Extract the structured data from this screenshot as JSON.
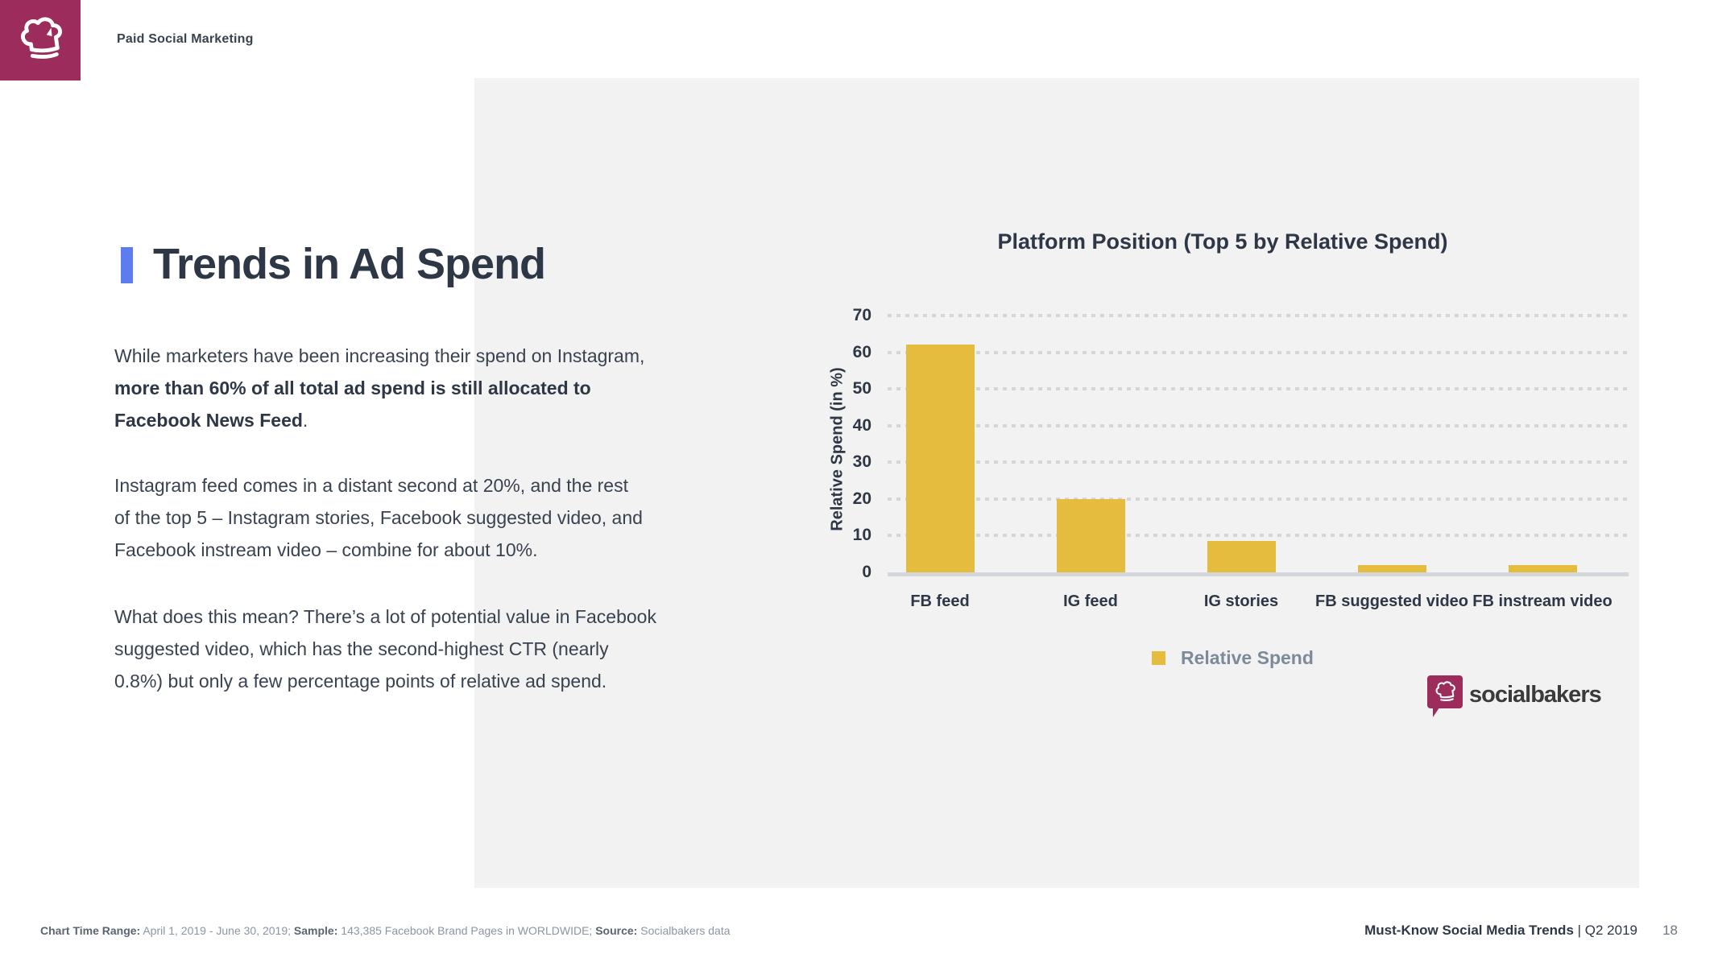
{
  "header": {
    "badge_label": "Paid Social Marketing"
  },
  "article": {
    "title": "Trends in Ad Spend",
    "p1_normal": "While marketers have been increasing their spend on Instagram,\n",
    "p1_bold": "more than 60% of all total ad spend is still allocated to\nFacebook News Feed",
    "p1_end": ".",
    "p2": "Instagram feed comes in a distant second at 20%, and the rest\nof the top 5 – Instagram stories, Facebook suggested video, and\nFacebook instream video – combine for about 10%.",
    "p3": "What does this mean? There’s a lot of potential value in Facebook\nsuggested video, which has the second-highest CTR (nearly\n0.8%) but only a few percentage points of relative ad spend."
  },
  "chart_data": {
    "type": "bar",
    "title": "Platform Position (Top 5 by Relative Spend)",
    "categories": [
      "FB feed",
      "IG feed",
      "IG stories",
      "FB suggested video",
      "FB instream video"
    ],
    "values": [
      62,
      20,
      8.5,
      2,
      2
    ],
    "series_name": "Relative Spend",
    "xlabel": "",
    "ylabel": "Relative Spend (in %)",
    "ylim": [
      0,
      70
    ],
    "yticks": [
      0,
      10,
      20,
      30,
      40,
      50,
      60,
      70
    ],
    "grid": "horizontal-dotted",
    "legend_position": "bottom",
    "bar_color": "#E5BC3E"
  },
  "brand": {
    "wordmark": "socialbakers"
  },
  "footer": {
    "left": [
      {
        "label": "Chart Time Range:",
        "value": " April 1, 2019 - June 30, 2019; "
      },
      {
        "label": "Sample:",
        "value": " 143,385 Facebook Brand Pages in WORLDWIDE; "
      },
      {
        "label": "Source:",
        "value": " Socialbakers data"
      }
    ],
    "right_bold": "Must-Know Social Media Trends",
    "right_normal": " | Q2 2019",
    "page_number": "18"
  },
  "colors": {
    "brand_maroon": "#9B2C5B",
    "accent_blue": "#5D7CEF",
    "bar_yellow": "#E5BC3E",
    "panel_gray": "#F2F2F3",
    "text_dark": "#2E3745",
    "legend_gray": "#7D8A99"
  }
}
